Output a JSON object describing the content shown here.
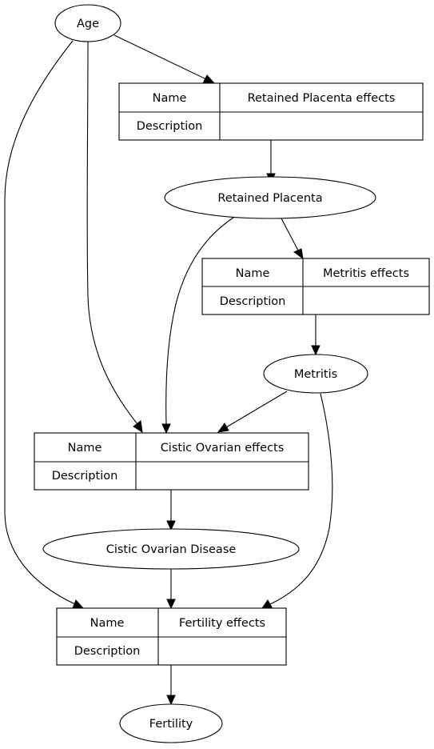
{
  "diagram": {
    "nodes": {
      "age": "Age",
      "retained_placenta": "Retained Placenta",
      "metritis": "Metritis",
      "cistic_ovarian_disease": "Cistic Ovarian Disease",
      "fertility": "Fertility"
    },
    "tables": {
      "retained_placenta_effects": {
        "name_label": "Name",
        "name_value": "Retained Placenta effects",
        "description_label": "Description",
        "description_value": ""
      },
      "metritis_effects": {
        "name_label": "Name",
        "name_value": "Metritis effects",
        "description_label": "Description",
        "description_value": ""
      },
      "cistic_ovarian_effects": {
        "name_label": "Name",
        "name_value": "Cistic Ovarian effects",
        "description_label": "Description",
        "description_value": ""
      },
      "fertility_effects": {
        "name_label": "Name",
        "name_value": "Fertility effects",
        "description_label": "Description",
        "description_value": ""
      }
    },
    "edges": [
      {
        "from": "Age",
        "to": "Retained Placenta effects"
      },
      {
        "from": "Age",
        "to": "Cistic Ovarian effects"
      },
      {
        "from": "Age",
        "to": "Fertility effects"
      },
      {
        "from": "Retained Placenta effects",
        "to": "Retained Placenta"
      },
      {
        "from": "Retained Placenta",
        "to": "Metritis effects"
      },
      {
        "from": "Retained Placenta",
        "to": "Cistic Ovarian effects"
      },
      {
        "from": "Metritis effects",
        "to": "Metritis"
      },
      {
        "from": "Metritis",
        "to": "Cistic Ovarian effects"
      },
      {
        "from": "Metritis",
        "to": "Fertility effects"
      },
      {
        "from": "Cistic Ovarian effects",
        "to": "Cistic Ovarian Disease"
      },
      {
        "from": "Cistic Ovarian Disease",
        "to": "Fertility effects"
      },
      {
        "from": "Fertility effects",
        "to": "Fertility"
      }
    ]
  }
}
